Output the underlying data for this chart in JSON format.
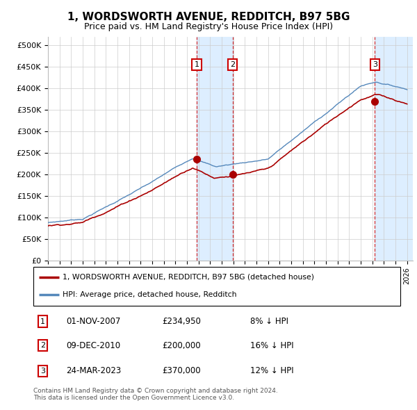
{
  "title": "1, WORDSWORTH AVENUE, REDDITCH, B97 5BG",
  "subtitle": "Price paid vs. HM Land Registry's House Price Index (HPI)",
  "xlim_start": 1995.0,
  "xlim_end": 2026.5,
  "ylim": [
    0,
    520000
  ],
  "yticks": [
    0,
    50000,
    100000,
    150000,
    200000,
    250000,
    300000,
    350000,
    400000,
    450000,
    500000
  ],
  "ytick_labels": [
    "£0",
    "£50K",
    "£100K",
    "£150K",
    "£200K",
    "£250K",
    "£300K",
    "£350K",
    "£400K",
    "£450K",
    "£500K"
  ],
  "sale_dates": [
    2007.84,
    2010.94,
    2023.23
  ],
  "sale_prices": [
    234950,
    200000,
    370000
  ],
  "sale_labels": [
    "1",
    "2",
    "3"
  ],
  "legend_line1": "1, WORDSWORTH AVENUE, REDDITCH, B97 5BG (detached house)",
  "legend_line2": "HPI: Average price, detached house, Redditch",
  "table_data": [
    [
      "1",
      "01-NOV-2007",
      "£234,950",
      "8% ↓ HPI"
    ],
    [
      "2",
      "09-DEC-2010",
      "£200,000",
      "16% ↓ HPI"
    ],
    [
      "3",
      "24-MAR-2023",
      "£370,000",
      "12% ↓ HPI"
    ]
  ],
  "footnote": "Contains HM Land Registry data © Crown copyright and database right 2024.\nThis data is licensed under the Open Government Licence v3.0.",
  "red_line_color": "#aa0000",
  "blue_line_color": "#5588bb",
  "shade_color": "#ddeeff"
}
